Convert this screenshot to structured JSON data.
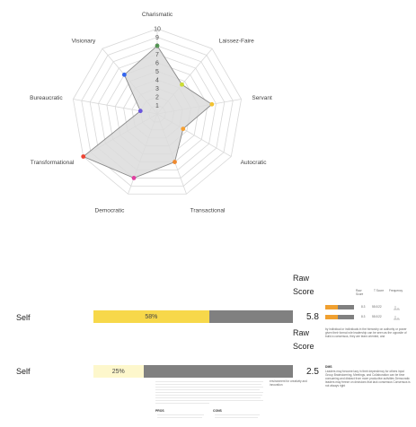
{
  "chart_data": {
    "type": "radar",
    "rmax": 10,
    "ticks": [
      "1",
      "2",
      "3",
      "4",
      "5",
      "6",
      "7",
      "8",
      "9",
      "10"
    ],
    "axes": [
      "Charismatic",
      "Laissez-Faire",
      "Servant",
      "Autocratic",
      "Transactional",
      "Democratic",
      "Transformational",
      "Bureaucratic",
      "Visionary"
    ],
    "values": [
      8,
      4.5,
      6.5,
      3.5,
      6,
      8,
      10,
      2,
      6
    ],
    "point_colors": [
      "#55bb55",
      "#ccdd33",
      "#f2c230",
      "#f7a030",
      "#ef8a30",
      "#e040a0",
      "#ee4433",
      "#6a55dd",
      "#3366ee"
    ],
    "fill_color": "#dcdcdc",
    "line_color": "#888888"
  },
  "rows": [
    {
      "label": "Self",
      "raw_header": [
        "Raw",
        "Score"
      ],
      "score": "5.8",
      "percent_text": "58%",
      "percent": 0.58,
      "fill_color": "#f7d84a"
    },
    {
      "label": "Self",
      "raw_header": [
        "Raw",
        "Score"
      ],
      "score": "2.5",
      "percent_text": "25%",
      "percent": 0.25,
      "fill_color": "#fdf7cc"
    }
  ],
  "mini_table": {
    "headers": [
      "Raw Score",
      "T Score",
      "Frequency"
    ],
    "rows": [
      {
        "raw": "8.3",
        "t": "55.0/22",
        "fill": 0.45
      },
      {
        "raw": "8.3",
        "t": "55.0/22",
        "fill": 0.45
      }
    ]
  },
  "snippets": {
    "p1": "by individual or individuals in the hierarchy on authority or power given their formal role leadership can be seen as the opposite of build a consensus, they are team oriented, and",
    "p2": "environment for creativity and innovation",
    "dms_heading": "DMS",
    "p3": "Leaders may become lazy in their dependency for others input Group Brainstorming, Meetings, and Collaboration can be time consuming and distract from more productive activities Democratic leaders may freeze on decisions that lack consensus Consensus is not always right",
    "pros": "PROS",
    "cons": "CONS"
  }
}
